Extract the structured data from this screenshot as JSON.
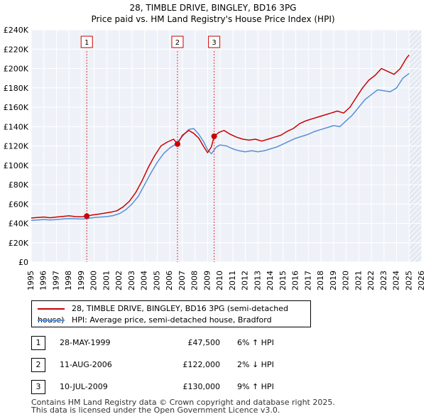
{
  "chart_data": {
    "type": "line",
    "title": "28, TIMBLE DRIVE, BINGLEY, BD16 3PG",
    "subtitle": "Price paid vs. HM Land Registry's House Price Index (HPI)",
    "xlim": [
      1995,
      2026
    ],
    "ylim": [
      0,
      240000
    ],
    "x_ticks": [
      "1995",
      "1996",
      "1997",
      "1998",
      "1999",
      "2000",
      "2001",
      "2002",
      "2003",
      "2004",
      "2005",
      "2006",
      "2007",
      "2008",
      "2009",
      "2010",
      "2011",
      "2012",
      "2013",
      "2014",
      "2015",
      "2016",
      "2017",
      "2018",
      "2019",
      "2020",
      "2021",
      "2022",
      "2023",
      "2024",
      "2025",
      "2026"
    ],
    "y_ticks": [
      {
        "value": 0,
        "label": "£0"
      },
      {
        "value": 20000,
        "label": "£20K"
      },
      {
        "value": 40000,
        "label": "£40K"
      },
      {
        "value": 60000,
        "label": "£60K"
      },
      {
        "value": 80000,
        "label": "£80K"
      },
      {
        "value": 100000,
        "label": "£100K"
      },
      {
        "value": 120000,
        "label": "£120K"
      },
      {
        "value": 140000,
        "label": "£140K"
      },
      {
        "value": 160000,
        "label": "£160K"
      },
      {
        "value": 180000,
        "label": "£180K"
      },
      {
        "value": 200000,
        "label": "£200K"
      },
      {
        "value": 220000,
        "label": "£220K"
      },
      {
        "value": 240000,
        "label": "£240K"
      }
    ],
    "grid": true,
    "forecast_start": 2025.0,
    "series": [
      {
        "name": "28, TIMBLE DRIVE, BINGLEY, BD16 3PG (semi-detached house)",
        "color": "#cc0000",
        "x": [
          1995.0,
          1995.5,
          1996.0,
          1996.5,
          1997.0,
          1997.5,
          1998.0,
          1998.5,
          1999.0,
          1999.41,
          1999.8,
          2000.3,
          2000.8,
          2001.3,
          2001.8,
          2002.3,
          2002.8,
          2003.3,
          2003.8,
          2004.3,
          2004.8,
          2005.3,
          2005.8,
          2006.3,
          2006.61,
          2007.0,
          2007.5,
          2007.9,
          2008.3,
          2008.7,
          2009.0,
          2009.3,
          2009.52,
          2009.9,
          2010.3,
          2010.8,
          2011.3,
          2011.8,
          2012.3,
          2012.8,
          2013.3,
          2013.8,
          2014.3,
          2014.8,
          2015.3,
          2015.8,
          2016.3,
          2016.8,
          2017.3,
          2017.8,
          2018.3,
          2018.8,
          2019.3,
          2019.8,
          2020.3,
          2020.8,
          2021.3,
          2021.8,
          2022.3,
          2022.8,
          2023.3,
          2023.8,
          2024.3,
          2024.8,
          2025.0
        ],
        "values": [
          45500,
          46000,
          46500,
          45800,
          46500,
          47200,
          47800,
          47000,
          46800,
          47500,
          48500,
          49500,
          50500,
          51500,
          53000,
          57000,
          63000,
          72000,
          84000,
          98000,
          110000,
          120000,
          124000,
          127000,
          122000,
          131000,
          136000,
          133000,
          128000,
          119000,
          113000,
          119000,
          130000,
          134000,
          136000,
          132000,
          129000,
          127000,
          126000,
          127000,
          125000,
          127000,
          129000,
          131000,
          135000,
          138000,
          143000,
          146000,
          148000,
          150000,
          152000,
          154000,
          156000,
          154000,
          160000,
          170000,
          180000,
          188000,
          193000,
          200000,
          197000,
          194000,
          200000,
          211000,
          214000
        ]
      },
      {
        "name": "HPI: Average price, semi-detached house, Bradford",
        "color": "#5b8fd4",
        "x": [
          1995.0,
          1995.5,
          1996.0,
          1996.5,
          1997.0,
          1997.5,
          1998.0,
          1998.5,
          1999.0,
          1999.5,
          2000.0,
          2000.5,
          2001.0,
          2001.5,
          2002.0,
          2002.5,
          2003.0,
          2003.5,
          2004.0,
          2004.5,
          2005.0,
          2005.5,
          2006.0,
          2006.5,
          2007.0,
          2007.5,
          2007.9,
          2008.3,
          2008.7,
          2009.0,
          2009.3,
          2009.7,
          2010.0,
          2010.5,
          2011.0,
          2011.5,
          2012.0,
          2012.5,
          2013.0,
          2013.5,
          2014.0,
          2014.5,
          2015.0,
          2015.5,
          2016.0,
          2016.5,
          2017.0,
          2017.5,
          2018.0,
          2018.5,
          2019.0,
          2019.5,
          2020.0,
          2020.5,
          2021.0,
          2021.5,
          2022.0,
          2022.5,
          2023.0,
          2023.5,
          2024.0,
          2024.5,
          2025.0
        ],
        "values": [
          43000,
          43500,
          44000,
          43500,
          44000,
          44500,
          45000,
          44800,
          44500,
          45000,
          46000,
          46500,
          47000,
          48000,
          50000,
          54000,
          60000,
          68000,
          80000,
          92000,
          103000,
          112000,
          118000,
          122000,
          130000,
          137000,
          138000,
          132000,
          124000,
          116000,
          112000,
          119000,
          121000,
          120000,
          117000,
          115000,
          114000,
          115000,
          114000,
          115000,
          117000,
          119000,
          122000,
          125000,
          128000,
          130000,
          132000,
          135000,
          137000,
          139000,
          141000,
          140000,
          146000,
          152000,
          160000,
          168000,
          173000,
          178000,
          177000,
          176000,
          180000,
          190000,
          195000
        ]
      }
    ],
    "transactions": [
      {
        "label": "1",
        "x": 1999.41,
        "value": 47500
      },
      {
        "label": "2",
        "x": 2006.61,
        "value": 122000
      },
      {
        "label": "3",
        "x": 2009.52,
        "value": 130000
      }
    ]
  },
  "legend": {
    "property_label": "28, TIMBLE DRIVE, BINGLEY, BD16 3PG (semi-detached house)",
    "hpi_label": "HPI: Average price, semi-detached house, Bradford"
  },
  "transactions": [
    {
      "num": "1",
      "date": "28-MAY-1999",
      "price": "£47,500",
      "hpi": "6% ↑ HPI"
    },
    {
      "num": "2",
      "date": "11-AUG-2006",
      "price": "£122,000",
      "hpi": "2% ↓ HPI"
    },
    {
      "num": "3",
      "date": "10-JUL-2009",
      "price": "£130,000",
      "hpi": "9% ↑ HPI"
    }
  ],
  "footer": {
    "line1": "Contains HM Land Registry data © Crown copyright and database right 2025.",
    "line2": "This data is licensed under the Open Government Licence v3.0."
  },
  "colors": {
    "property": "#cc0000",
    "hpi": "#5b8fd4",
    "plot_bg": "#eef2f8",
    "grid": "#ffffff",
    "marker_line": "#dd3333"
  }
}
